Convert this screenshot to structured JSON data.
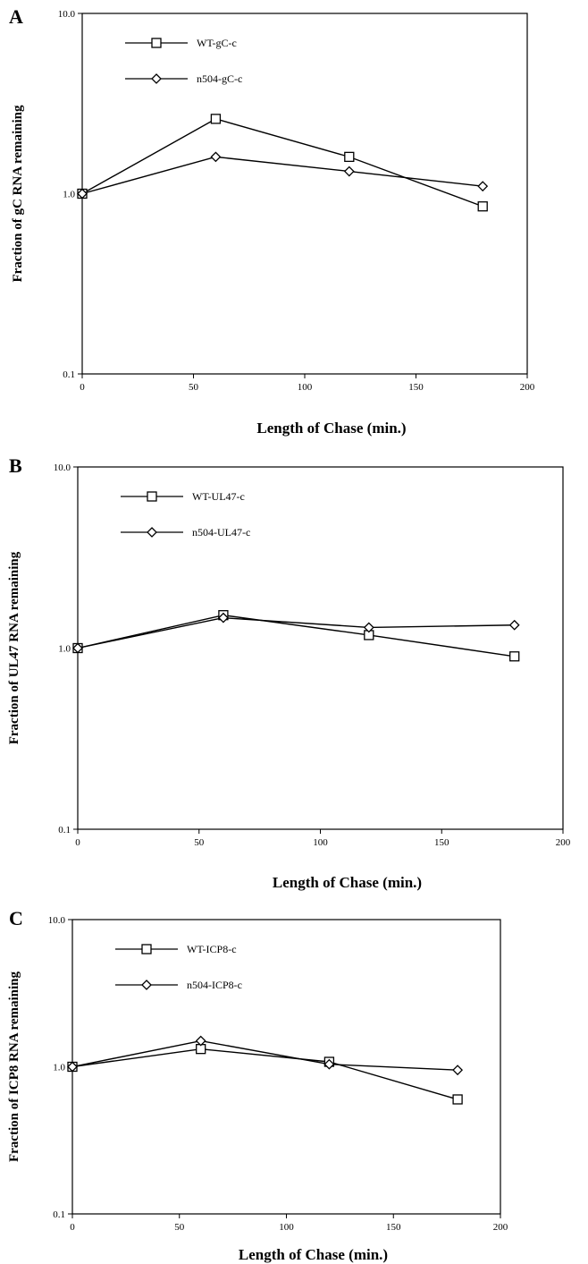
{
  "chart_data": [
    {
      "type": "line",
      "panel": "A",
      "ylabel": "Fraction of gC RNA remaining",
      "xlabel": "Length of Chase (min.)",
      "x": [
        0,
        60,
        120,
        180
      ],
      "xlim": [
        0,
        200
      ],
      "xticks": [
        "0",
        "50",
        "100",
        "150",
        "200"
      ],
      "ylim": [
        0.1,
        10
      ],
      "yscale": "log",
      "yticks": [
        "0.1",
        "1.0",
        "10.0"
      ],
      "legend_position": "top-left",
      "series": [
        {
          "name": "WT-gC-c",
          "marker": "square",
          "values": [
            1.0,
            2.6,
            1.6,
            0.85
          ]
        },
        {
          "name": "n504-gC-c",
          "marker": "diamond",
          "values": [
            1.0,
            1.6,
            1.33,
            1.1
          ]
        }
      ]
    },
    {
      "type": "line",
      "panel": "B",
      "ylabel": "Fraction of UL47 RNA remaining",
      "xlabel": "Length of Chase (min.)",
      "x": [
        0,
        60,
        120,
        180
      ],
      "xlim": [
        0,
        200
      ],
      "xticks": [
        "0",
        "50",
        "100",
        "150",
        "200"
      ],
      "ylim": [
        0.1,
        10
      ],
      "yscale": "log",
      "yticks": [
        "0.1",
        "1.0",
        "10.0"
      ],
      "legend_position": "top-left",
      "series": [
        {
          "name": "WT-UL47-c",
          "marker": "square",
          "values": [
            1.0,
            1.52,
            1.18,
            0.9
          ]
        },
        {
          "name": "n504-UL47-c",
          "marker": "diamond",
          "values": [
            1.0,
            1.47,
            1.3,
            1.34
          ]
        }
      ]
    },
    {
      "type": "line",
      "panel": "C",
      "ylabel": "Fraction of ICP8 RNA remaining",
      "xlabel": "Length of Chase (min.)",
      "x": [
        0,
        60,
        120,
        180
      ],
      "xlim": [
        0,
        200
      ],
      "xticks": [
        "0",
        "50",
        "100",
        "150",
        "200"
      ],
      "ylim": [
        0.1,
        10
      ],
      "yscale": "log",
      "yticks": [
        "0.1",
        "1.0",
        "10.0"
      ],
      "legend_position": "top-left",
      "series": [
        {
          "name": "WT-ICP8-c",
          "marker": "square",
          "values": [
            1.0,
            1.32,
            1.08,
            0.6
          ]
        },
        {
          "name": "n504-ICP8-c",
          "marker": "diamond",
          "values": [
            1.0,
            1.5,
            1.04,
            0.95
          ]
        }
      ]
    }
  ]
}
